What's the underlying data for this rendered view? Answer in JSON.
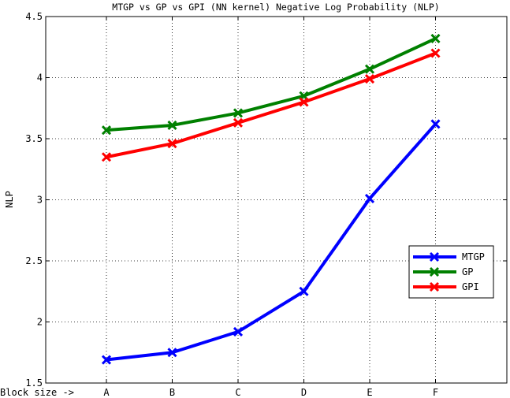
{
  "chart_data": {
    "type": "line",
    "title": "MTGP vs GP vs GPI (NN kernel) Negative Log Probability (NLP)",
    "xlabel": "Block size ->",
    "ylabel": "NLP",
    "categories": [
      "A",
      "B",
      "C",
      "D",
      "E",
      "F"
    ],
    "ylim": [
      1.5,
      4.5
    ],
    "yticks": [
      "1.5",
      "2",
      "2.5",
      "3",
      "3.5",
      "4",
      "4.5"
    ],
    "grid": true,
    "legend_position": "lower-right",
    "series": [
      {
        "name": "MTGP",
        "color": "#0000ff",
        "marker": "x",
        "values": [
          1.69,
          1.75,
          1.92,
          2.25,
          3.01,
          3.62
        ]
      },
      {
        "name": "GP",
        "color": "#008000",
        "marker": "x",
        "values": [
          3.57,
          3.61,
          3.71,
          3.85,
          4.07,
          4.32
        ]
      },
      {
        "name": "GPI",
        "color": "#ff0000",
        "marker": "x",
        "values": [
          3.35,
          3.46,
          3.63,
          3.8,
          3.99,
          4.2
        ]
      }
    ]
  }
}
